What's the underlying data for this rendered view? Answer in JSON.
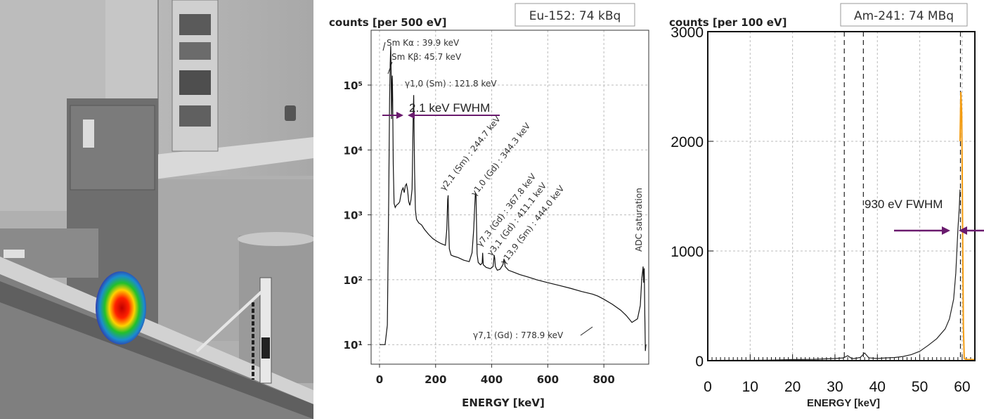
{
  "chart_data": [
    {
      "type": "line",
      "id": "eu152",
      "box_label": "Eu-152: 74 kBq",
      "ylabel": "counts [per 500 eV]",
      "xlabel": "ENERGY [keV]",
      "xlim": [
        -30,
        960
      ],
      "ylim": [
        5,
        700000
      ],
      "yscale": "log",
      "x_ticks": [
        0,
        200,
        400,
        600,
        800
      ],
      "y_tick_labels": [
        "10⁵",
        "10⁴",
        "10³",
        "10²",
        "10¹"
      ],
      "y_tick_values": [
        100000,
        10000,
        1000,
        100,
        10
      ],
      "grid": true,
      "series": [
        {
          "x": [
            0,
            4,
            10,
            20,
            28,
            33,
            36,
            38,
            39.9,
            41.5,
            43,
            45,
            45.7,
            47,
            49,
            52,
            56,
            60,
            64,
            68,
            72,
            76,
            80,
            84,
            88,
            92,
            96,
            100,
            104,
            108,
            112,
            116,
            119,
            120.5,
            121.8,
            123,
            125,
            128,
            132,
            140,
            150,
            160,
            175,
            190,
            205,
            220,
            235,
            240,
            243,
            244.7,
            246,
            249,
            255,
            265,
            280,
            300,
            320,
            330,
            336,
            340,
            342,
            344.3,
            346,
            348,
            352,
            360,
            366,
            367.8,
            370,
            380,
            395,
            405,
            409,
            411.1,
            413,
            420,
            430,
            440,
            444.0,
            448,
            460,
            480,
            500,
            530,
            560,
            600,
            640,
            680,
            720,
            760,
            778.9,
            800,
            830,
            860,
            880,
            900,
            920,
            930,
            935,
            940,
            942,
            944,
            946,
            948,
            950
          ],
          "y": [
            10,
            10,
            10,
            10,
            20,
            2000,
            60000,
            200000,
            400000,
            150000,
            30000,
            120000,
            140000,
            60000,
            6000,
            1500,
            1300,
            1400,
            1450,
            1500,
            1600,
            2000,
            2400,
            2600,
            2200,
            2800,
            3000,
            2400,
            1600,
            1400,
            1700,
            2500,
            15000,
            40000,
            70000,
            30000,
            5000,
            1200,
            850,
            750,
            700,
            600,
            500,
            430,
            390,
            360,
            340,
            600,
            1700,
            2000,
            900,
            300,
            240,
            230,
            220,
            200,
            190,
            260,
            600,
            1500,
            2200,
            2000,
            700,
            250,
            185,
            170,
            180,
            260,
            170,
            155,
            148,
            160,
            240,
            210,
            160,
            140,
            145,
            170,
            210,
            160,
            140,
            130,
            120,
            110,
            100,
            90,
            82,
            74,
            66,
            60,
            56,
            50,
            42,
            34,
            28,
            22,
            25,
            40,
            100,
            160,
            90,
            150,
            30,
            8,
            10
          ]
        }
      ],
      "annotations": [
        "Sm Kα : 39.9 keV",
        "Sm Kβ: 45.7 keV",
        "γ1,0 (Sm) : 121.8 keV",
        "γ2,1 (Sm) : 244.7 keV",
        "γ1,0 (Gd) : 344.3 keV",
        "γ7,3 (Gd) : 367.8 keV",
        "γ3,1 (Gd) : 411.1 keV",
        "γ13,9 (Sm) : 444.0 keV",
        "γ7,1 (Gd) : 778.9 keV",
        "ADC saturation"
      ],
      "fwhm_label": "2.1 keV FWHM"
    },
    {
      "type": "line",
      "id": "am241",
      "box_label": "Am-241: 74 MBq",
      "ylabel": "counts [per 100 eV]",
      "xlabel": "ENERGY [keV]",
      "xlim": [
        0,
        63
      ],
      "ylim": [
        0,
        3000
      ],
      "x_ticks": [
        0,
        10,
        20,
        30,
        40,
        50,
        60
      ],
      "y_ticks": [
        0,
        1000,
        2000,
        3000
      ],
      "grid": true,
      "dashed_lines_x": [
        32.2,
        36.7,
        59.6
      ],
      "series": [
        {
          "name": "black",
          "color": "#222222",
          "x": [
            0,
            5,
            10,
            15,
            20,
            25,
            30,
            32,
            33,
            34,
            35,
            36,
            37,
            38,
            40,
            42,
            44,
            46,
            48,
            50,
            52,
            54,
            56,
            57,
            58,
            58.5,
            59,
            59.3,
            59.5
          ],
          "y": [
            2,
            3,
            3,
            5,
            10,
            12,
            20,
            25,
            45,
            18,
            22,
            30,
            70,
            25,
            20,
            25,
            28,
            38,
            55,
            85,
            140,
            200,
            290,
            380,
            560,
            800,
            1200,
            1380,
            1560
          ]
        },
        {
          "name": "orange",
          "color": "#f39c12",
          "x": [
            59.5,
            59.7,
            59.9,
            60.0,
            60.15,
            60.3,
            60.5,
            61,
            62,
            63
          ],
          "y": [
            2000,
            2450,
            2250,
            1800,
            1000,
            300,
            20,
            10,
            10,
            10
          ]
        }
      ],
      "fwhm_label": "930 eV FWHM"
    }
  ],
  "colors": {
    "arrow": "#6a1b6e",
    "orange": "#f39c12",
    "grid": "#bbbbbb"
  }
}
